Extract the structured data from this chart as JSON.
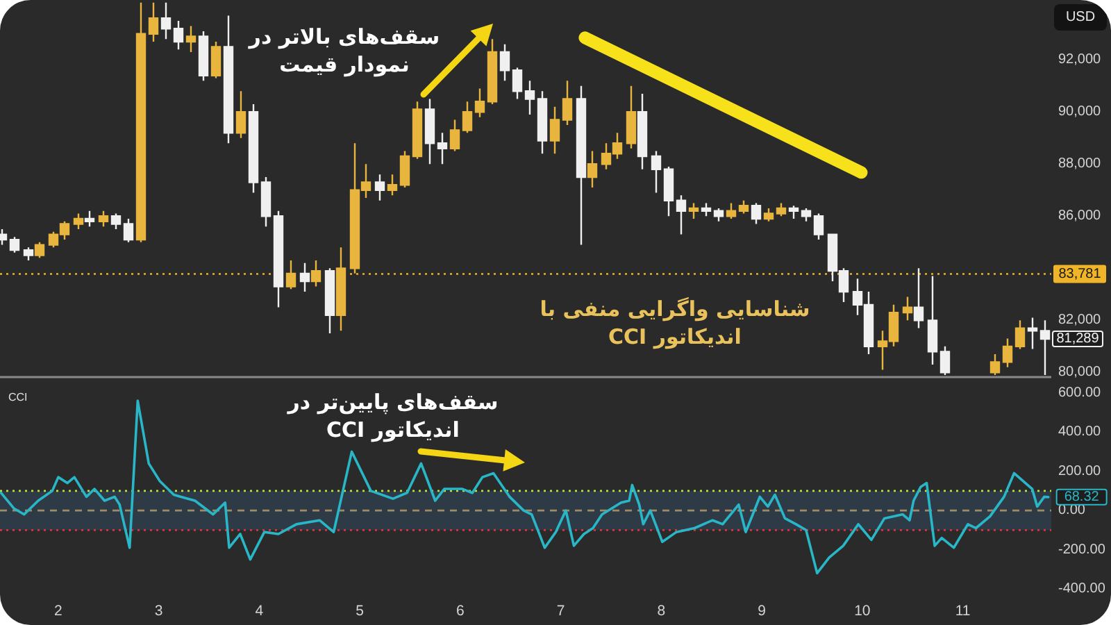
{
  "chart_data": [
    {
      "type": "candlestick",
      "ylabel": "USD",
      "annotations": [
        "سقف‌های بالاتر در\nنمودار قیمت",
        "شناسایی واگرایی منفی با\nاندیکاتور CCI",
        {
          "text": "81,289",
          "x": 11.81,
          "y": 81289
        }
      ],
      "x": [
        1.44,
        1.56,
        1.69,
        1.81,
        1.94,
        2.06,
        2.19,
        2.31,
        2.44,
        2.56,
        2.69,
        2.81,
        2.94,
        3.06,
        3.19,
        3.31,
        3.44,
        3.56,
        3.69,
        3.81,
        3.94,
        4.06,
        4.19,
        4.31,
        4.44,
        4.56,
        4.69,
        4.81,
        4.94,
        5.06,
        5.19,
        5.31,
        5.44,
        5.56,
        5.69,
        5.81,
        5.94,
        6.06,
        6.19,
        6.31,
        6.44,
        6.56,
        6.69,
        6.81,
        6.94,
        7.06,
        7.19,
        7.31,
        7.44,
        7.56,
        7.69,
        7.81,
        7.94,
        8.06,
        8.19,
        8.31,
        8.44,
        8.56,
        8.69,
        8.81,
        8.94,
        9.06,
        9.19,
        9.31,
        9.44,
        9.56,
        9.69,
        9.81,
        9.94,
        10.06,
        10.19,
        10.31,
        10.44,
        10.56,
        10.69,
        10.81,
        11.31,
        11.44,
        11.56,
        11.69,
        11.81
      ],
      "ohlc": [
        [
          85300,
          85500,
          84900,
          85100
        ],
        [
          85100,
          85200,
          84600,
          84700
        ],
        [
          84700,
          84800,
          84300,
          84500
        ],
        [
          84500,
          85000,
          84400,
          84900
        ],
        [
          84900,
          85400,
          84800,
          85300
        ],
        [
          85300,
          85800,
          85100,
          85700
        ],
        [
          85700,
          86100,
          85500,
          85900
        ],
        [
          85900,
          86200,
          85600,
          85800
        ],
        [
          85800,
          86200,
          85600,
          86000
        ],
        [
          86000,
          86100,
          85500,
          85700
        ],
        [
          85700,
          85900,
          85000,
          85100
        ],
        [
          85100,
          94200,
          85000,
          93000
        ],
        [
          93000,
          94200,
          92700,
          93600
        ],
        [
          93600,
          94200,
          92800,
          93200
        ],
        [
          93200,
          93500,
          92400,
          92700
        ],
        [
          92700,
          93300,
          92300,
          92900
        ],
        [
          92900,
          93100,
          91200,
          91400
        ],
        [
          91400,
          92700,
          91300,
          92500
        ],
        [
          92500,
          93700,
          88800,
          89200
        ],
        [
          89200,
          90800,
          89000,
          90000
        ],
        [
          90000,
          90300,
          86900,
          87300
        ],
        [
          87300,
          87500,
          85600,
          86000
        ],
        [
          86000,
          86200,
          82500,
          83300
        ],
        [
          83300,
          84300,
          83200,
          83800
        ],
        [
          83800,
          84200,
          83100,
          83500
        ],
        [
          83500,
          84300,
          83300,
          83900
        ],
        [
          83900,
          84000,
          81500,
          82200
        ],
        [
          82200,
          84800,
          81600,
          84000
        ],
        [
          84000,
          88800,
          83800,
          87000
        ],
        [
          87000,
          88000,
          86700,
          87300
        ],
        [
          87300,
          87600,
          86600,
          87000
        ],
        [
          87000,
          87600,
          86800,
          87200
        ],
        [
          87200,
          88500,
          87100,
          88300
        ],
        [
          88300,
          90400,
          88200,
          90100
        ],
        [
          90100,
          90500,
          88000,
          88800
        ],
        [
          88800,
          89200,
          88000,
          88600
        ],
        [
          88600,
          89700,
          88500,
          89300
        ],
        [
          89300,
          90400,
          89200,
          90000
        ],
        [
          90000,
          90900,
          89800,
          90400
        ],
        [
          90400,
          92800,
          90300,
          92300
        ],
        [
          92300,
          92600,
          91200,
          91600
        ],
        [
          91600,
          91700,
          90500,
          90800
        ],
        [
          90800,
          91200,
          89900,
          90500
        ],
        [
          90500,
          90800,
          88400,
          88900
        ],
        [
          88900,
          90200,
          88400,
          89700
        ],
        [
          89700,
          91200,
          89500,
          90500
        ],
        [
          90500,
          91000,
          84900,
          87500
        ],
        [
          87500,
          88500,
          87100,
          88000
        ],
        [
          88000,
          88800,
          87800,
          88400
        ],
        [
          88400,
          89200,
          88200,
          88800
        ],
        [
          88800,
          91000,
          88600,
          90000
        ],
        [
          90000,
          90700,
          87800,
          88300
        ],
        [
          88300,
          88500,
          86900,
          87800
        ],
        [
          87800,
          87900,
          86000,
          86600
        ],
        [
          86600,
          86800,
          85300,
          86200
        ],
        [
          86200,
          86500,
          85900,
          86300
        ],
        [
          86300,
          86500,
          86000,
          86200
        ],
        [
          86200,
          86300,
          85800,
          86000
        ],
        [
          86000,
          86500,
          85900,
          86200
        ],
        [
          86200,
          86600,
          86100,
          86400
        ],
        [
          86400,
          86500,
          85700,
          85900
        ],
        [
          85900,
          86300,
          85800,
          86100
        ],
        [
          86100,
          86500,
          86000,
          86300
        ],
        [
          86300,
          86400,
          85900,
          86200
        ],
        [
          86200,
          86300,
          85800,
          86000
        ],
        [
          86000,
          86100,
          85100,
          85300
        ],
        [
          85300,
          85300,
          83500,
          83900
        ],
        [
          83900,
          84000,
          82700,
          83100
        ],
        [
          83100,
          83600,
          82200,
          82600
        ],
        [
          82600,
          83100,
          80700,
          81000
        ],
        [
          81000,
          81600,
          80100,
          81200
        ],
        [
          81200,
          82600,
          81000,
          82300
        ],
        [
          82300,
          82900,
          82000,
          82500
        ],
        [
          82500,
          84000,
          81700,
          82000
        ],
        [
          82000,
          83700,
          80300,
          80800
        ],
        [
          80800,
          81000,
          79900,
          80000
        ],
        [
          80000,
          80700,
          79900,
          80400
        ],
        [
          80400,
          81300,
          80200,
          81000
        ],
        [
          81000,
          82000,
          80900,
          81700
        ],
        [
          81700,
          82100,
          80900,
          81600
        ],
        [
          81600,
          82000,
          79900,
          81289
        ]
      ],
      "colors": [
        "#f0f0f0",
        "#f0f0f0",
        "#f0f0f0",
        "#e8b53e",
        "#e8b53e",
        "#e8b53e",
        "#e8b53e",
        "#f0f0f0",
        "#e8b53e",
        "#f0f0f0",
        "#f0f0f0",
        "#e8b53e",
        "#e8b53e",
        "#f0f0f0",
        "#f0f0f0",
        "#e8b53e",
        "#f0f0f0",
        "#e8b53e",
        "#f0f0f0",
        "#e8b53e",
        "#f0f0f0",
        "#f0f0f0",
        "#f0f0f0",
        "#e8b53e",
        "#f0f0f0",
        "#e8b53e",
        "#f0f0f0",
        "#e8b53e",
        "#e8b53e",
        "#e8b53e",
        "#f0f0f0",
        "#e8b53e",
        "#e8b53e",
        "#e8b53e",
        "#f0f0f0",
        "#f0f0f0",
        "#e8b53e",
        "#e8b53e",
        "#e8b53e",
        "#e8b53e",
        "#f0f0f0",
        "#f0f0f0",
        "#f0f0f0",
        "#f0f0f0",
        "#e8b53e",
        "#e8b53e",
        "#f0f0f0",
        "#e8b53e",
        "#e8b53e",
        "#e8b53e",
        "#e8b53e",
        "#f0f0f0",
        "#f0f0f0",
        "#f0f0f0",
        "#f0f0f0",
        "#e8b53e",
        "#f0f0f0",
        "#f0f0f0",
        "#e8b53e",
        "#e8b53e",
        "#f0f0f0",
        "#e8b53e",
        "#e8b53e",
        "#f0f0f0",
        "#f0f0f0",
        "#f0f0f0",
        "#f0f0f0",
        "#f0f0f0",
        "#f0f0f0",
        "#f0f0f0",
        "#e8b53e",
        "#e8b53e",
        "#e8b53e",
        "#f0f0f0",
        "#f0f0f0",
        "#f0f0f0",
        "#e8b53e",
        "#e8b53e",
        "#e8b53e",
        "#f0f0f0",
        "#f0f0f0"
      ],
      "series": [
        {
          "type": "line",
          "x": [
            7.24,
            9.99
          ],
          "values": [
            92850,
            87680
          ],
          "color": "#f7e11b"
        }
      ],
      "xlim": [
        1.42,
        11.88
      ],
      "ylim": [
        79850,
        94300
      ],
      "yticks": [
        {
          "value": 80000,
          "label": "80,000"
        },
        {
          "value": 82000,
          "label": "82,000"
        },
        {
          "value": 86000,
          "label": "86,000"
        },
        {
          "value": 88000,
          "label": "88,000"
        },
        {
          "value": 90000,
          "label": "90,000"
        },
        {
          "value": 92000,
          "label": "92,000"
        }
      ],
      "ref_lines": [
        {
          "axis": "y",
          "value": 83781,
          "label": "83,781",
          "color": "#f0b429",
          "line_style": "dotted"
        }
      ],
      "tick_labels": "y"
    },
    {
      "type": "line",
      "title": "CCI",
      "annotations": [
        "سقف‌های پایین‌تر در\nاندیکاتور CCI",
        {
          "text": "68.32",
          "x": 11.85,
          "y": 68.32
        }
      ],
      "x": [
        1.43,
        1.56,
        1.66,
        1.8,
        1.94,
        2.0,
        2.09,
        2.16,
        2.28,
        2.36,
        2.46,
        2.56,
        2.61,
        2.71,
        2.79,
        2.9,
        3.01,
        3.15,
        3.36,
        3.54,
        3.66,
        3.7,
        3.81,
        3.91,
        4.05,
        4.19,
        4.37,
        4.6,
        4.74,
        4.92,
        5.11,
        5.33,
        5.47,
        5.61,
        5.75,
        5.84,
        6.02,
        6.12,
        6.22,
        6.33,
        6.49,
        6.63,
        6.71,
        6.84,
        6.95,
        7.05,
        7.13,
        7.23,
        7.32,
        7.41,
        7.6,
        7.68,
        7.71,
        7.78,
        7.82,
        7.89,
        8.01,
        8.15,
        8.33,
        8.51,
        8.61,
        8.77,
        8.84,
        8.98,
        9.06,
        9.13,
        9.23,
        9.34,
        9.44,
        9.55,
        9.67,
        9.81,
        9.96,
        10.09,
        10.22,
        10.4,
        10.47,
        10.51,
        10.58,
        10.64,
        10.72,
        10.79,
        10.91,
        11.05,
        11.13,
        11.27,
        11.41,
        11.51,
        11.69,
        11.74,
        11.81,
        11.85
      ],
      "series": [
        {
          "color": "#29b6c6",
          "values": [
            90,
            10,
            -20,
            50,
            100,
            170,
            140,
            170,
            70,
            110,
            50,
            70,
            30,
            -190,
            560,
            240,
            150,
            80,
            50,
            -20,
            40,
            -190,
            -120,
            -250,
            -110,
            -120,
            -70,
            -50,
            -110,
            300,
            100,
            60,
            90,
            240,
            50,
            110,
            110,
            90,
            170,
            190,
            70,
            0,
            -20,
            -190,
            -110,
            0,
            -180,
            -120,
            -90,
            -20,
            40,
            50,
            130,
            30,
            -70,
            0,
            -160,
            -110,
            -90,
            -50,
            -70,
            30,
            -110,
            70,
            20,
            80,
            -40,
            -70,
            -100,
            -320,
            -240,
            -180,
            -70,
            -150,
            -40,
            -20,
            -50,
            50,
            120,
            140,
            -180,
            -140,
            -190,
            -70,
            -90,
            -30,
            70,
            190,
            110,
            20,
            70,
            68.32
          ]
        }
      ],
      "xlim": [
        1.42,
        11.88
      ],
      "ylim": [
        -400,
        670
      ],
      "xticks": [
        2,
        3,
        4,
        5,
        6,
        7,
        8,
        9,
        10,
        11
      ],
      "yticks": [
        {
          "value": -400,
          "label": "-400.00"
        },
        {
          "value": -200,
          "label": "-200.00"
        },
        {
          "value": 0,
          "label": "0.00"
        },
        {
          "value": 200,
          "label": "200.00"
        },
        {
          "value": 400,
          "label": "400.00"
        },
        {
          "value": 600,
          "label": "600.00"
        }
      ],
      "bands": [
        {
          "axis": "y",
          "from": -100,
          "to": 100,
          "color": "#2e3b47"
        }
      ],
      "ref_lines": [
        {
          "axis": "y",
          "value": 100,
          "color": "#b7e63a",
          "line_style": "dotted"
        },
        {
          "axis": "y",
          "value": 0,
          "color": "#a08a66",
          "line_style": "dashed"
        },
        {
          "axis": "y",
          "value": -100,
          "color": "#e0323a",
          "line_style": "dotted"
        }
      ]
    }
  ]
}
